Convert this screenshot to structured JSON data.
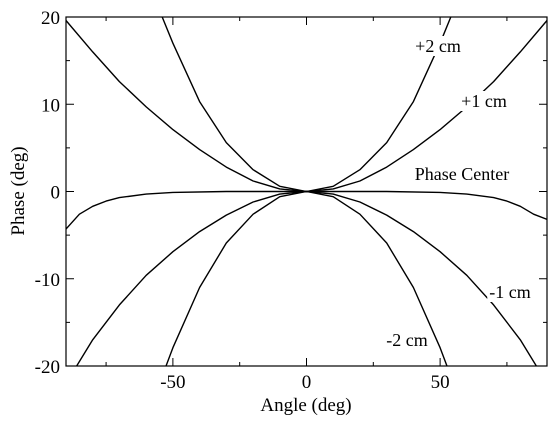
{
  "chart_data": {
    "type": "line",
    "title": "",
    "xlabel": "Angle (deg)",
    "ylabel": "Phase (deg)",
    "xlim": [
      -90,
      90
    ],
    "ylim": [
      -20,
      20
    ],
    "xticks": [
      -50,
      0,
      50
    ],
    "yticks": [
      -20,
      -10,
      0,
      10,
      20
    ],
    "grid": false,
    "legend": "none",
    "line_color": "#000000",
    "series": [
      {
        "label": "+2 cm",
        "points": [
          [
            -54,
            20
          ],
          [
            -50,
            17.0
          ],
          [
            -40,
            10.3
          ],
          [
            -30,
            5.6
          ],
          [
            -20,
            2.5
          ],
          [
            -10,
            0.6
          ],
          [
            0,
            0
          ],
          [
            10,
            0.6
          ],
          [
            20,
            2.5
          ],
          [
            30,
            5.6
          ],
          [
            40,
            10.3
          ],
          [
            50,
            17.0
          ],
          [
            54,
            20
          ]
        ]
      },
      {
        "label": "+1 cm",
        "points": [
          [
            -90,
            19.6
          ],
          [
            -80,
            16.0
          ],
          [
            -70,
            12.6
          ],
          [
            -60,
            9.7
          ],
          [
            -50,
            7.1
          ],
          [
            -40,
            4.8
          ],
          [
            -30,
            2.8
          ],
          [
            -20,
            1.2
          ],
          [
            -10,
            0.3
          ],
          [
            0,
            0
          ],
          [
            10,
            0.3
          ],
          [
            20,
            1.2
          ],
          [
            30,
            2.8
          ],
          [
            40,
            4.8
          ],
          [
            50,
            7.1
          ],
          [
            60,
            9.7
          ],
          [
            70,
            12.6
          ],
          [
            80,
            16.0
          ],
          [
            90,
            19.6
          ]
        ]
      },
      {
        "label": "Phase Center",
        "points": [
          [
            -90,
            -4.3
          ],
          [
            -85,
            -2.6
          ],
          [
            -80,
            -1.7
          ],
          [
            -75,
            -1.1
          ],
          [
            -70,
            -0.7
          ],
          [
            -60,
            -0.3
          ],
          [
            -50,
            -0.1
          ],
          [
            -30,
            0
          ],
          [
            0,
            0
          ],
          [
            30,
            0
          ],
          [
            50,
            -0.1
          ],
          [
            60,
            -0.3
          ],
          [
            70,
            -0.7
          ],
          [
            75,
            -1.1
          ],
          [
            80,
            -1.7
          ],
          [
            85,
            -2.6
          ],
          [
            90,
            -3.2
          ]
        ]
      },
      {
        "label": "-1 cm",
        "points": [
          [
            -90,
            -22.0
          ],
          [
            -80,
            -17.0
          ],
          [
            -70,
            -13.0
          ],
          [
            -60,
            -9.6
          ],
          [
            -50,
            -6.9
          ],
          [
            -40,
            -4.6
          ],
          [
            -30,
            -2.7
          ],
          [
            -20,
            -1.2
          ],
          [
            -10,
            -0.3
          ],
          [
            0,
            0
          ],
          [
            10,
            -0.3
          ],
          [
            20,
            -1.2
          ],
          [
            30,
            -2.7
          ],
          [
            40,
            -4.6
          ],
          [
            50,
            -6.9
          ],
          [
            60,
            -9.6
          ],
          [
            70,
            -13.0
          ],
          [
            80,
            -17.0
          ],
          [
            90,
            -22.0
          ]
        ]
      },
      {
        "label": "-2 cm",
        "points": [
          [
            -55,
            -22.0
          ],
          [
            -50,
            -17.9
          ],
          [
            -40,
            -11.0
          ],
          [
            -30,
            -5.9
          ],
          [
            -20,
            -2.6
          ],
          [
            -10,
            -0.6
          ],
          [
            0,
            0
          ],
          [
            10,
            -0.6
          ],
          [
            20,
            -2.6
          ],
          [
            30,
            -5.9
          ],
          [
            40,
            -11.0
          ],
          [
            50,
            -17.9
          ],
          [
            55,
            -22.0
          ]
        ]
      }
    ]
  }
}
